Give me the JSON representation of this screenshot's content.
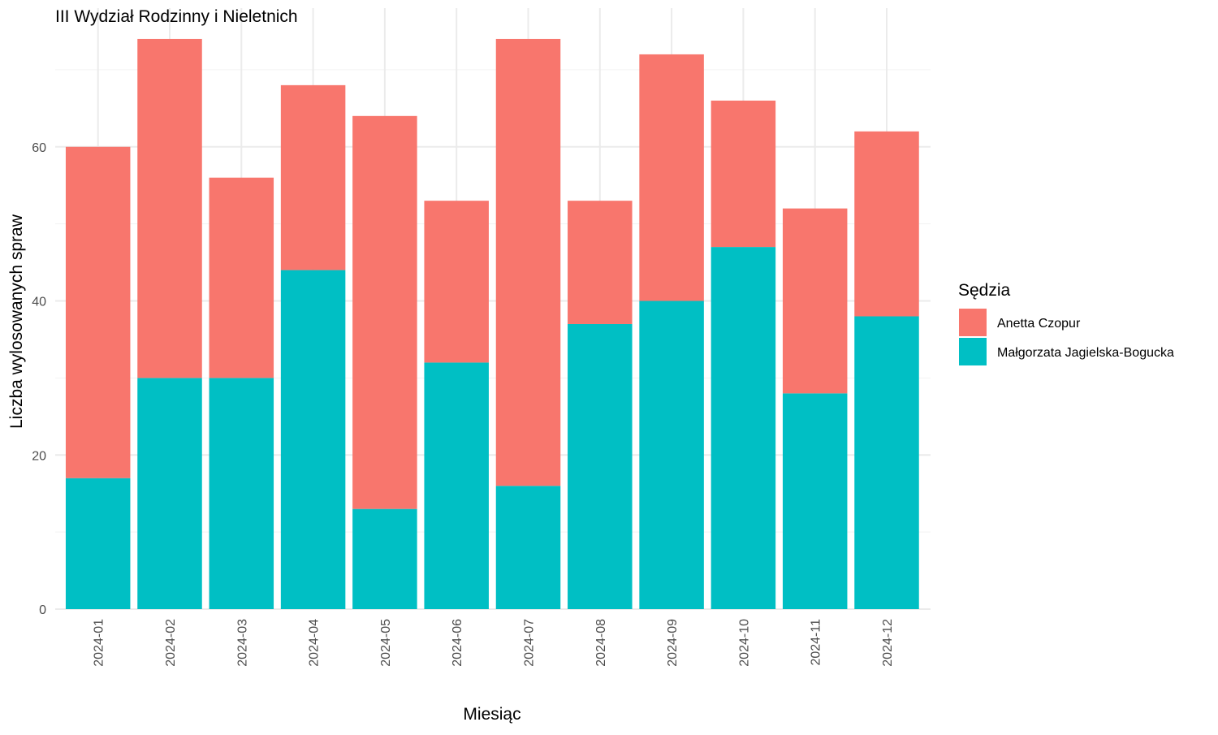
{
  "chart_data": {
    "type": "bar",
    "stacked": true,
    "title": "III Wydział Rodzinny i Nieletnich",
    "xlabel": "Miesiąc",
    "ylabel": "Liczba wylosowanych spraw",
    "ylim": [
      0,
      78
    ],
    "yticks": [
      0,
      20,
      40,
      60
    ],
    "grid": true,
    "legend_position": "right",
    "legend_title": "Sędzia",
    "categories": [
      "2024-01",
      "2024-02",
      "2024-03",
      "2024-04",
      "2024-05",
      "2024-06",
      "2024-07",
      "2024-08",
      "2024-09",
      "2024-10",
      "2024-11",
      "2024-12"
    ],
    "series": [
      {
        "name": "Anetta Czopur",
        "color": "#F8766D",
        "values": [
          43,
          44,
          26,
          24,
          51,
          21,
          58,
          16,
          32,
          19,
          24,
          24
        ]
      },
      {
        "name": "Małgorzata Jagielska-Bogucka",
        "color": "#00BFC4",
        "values": [
          17,
          30,
          30,
          44,
          13,
          32,
          16,
          37,
          40,
          47,
          28,
          38
        ]
      }
    ]
  }
}
